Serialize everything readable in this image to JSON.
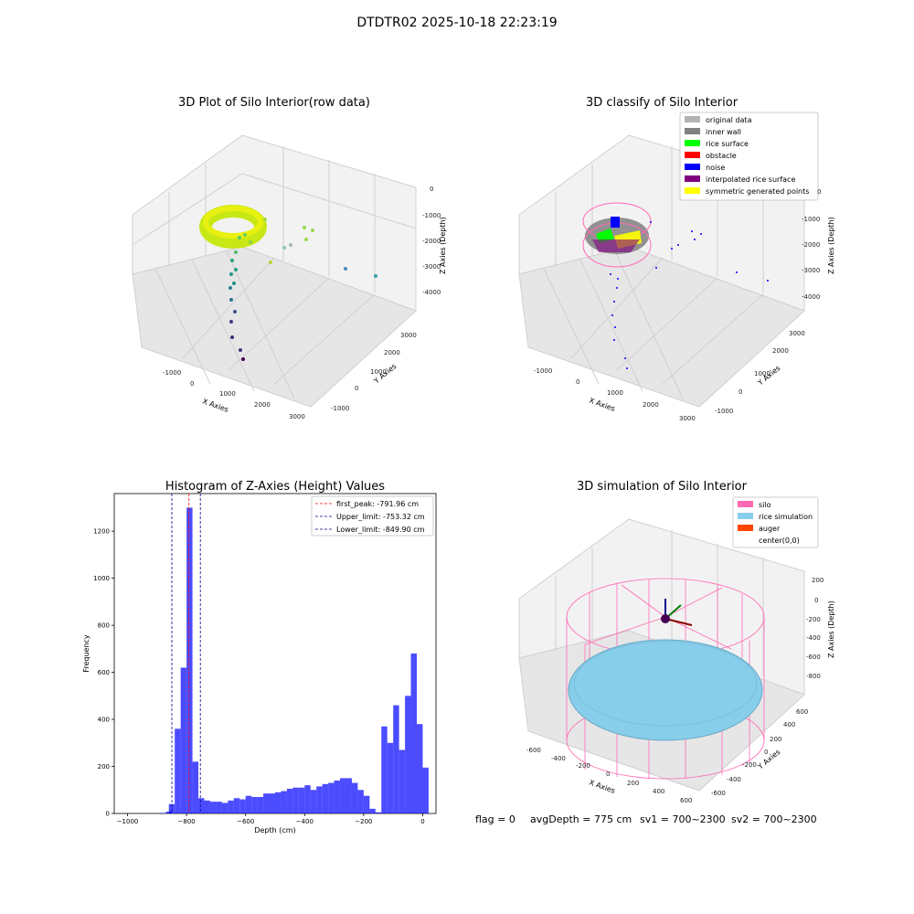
{
  "figure": {
    "suptitle": "DTDTR02 2025-10-18 22:23:19",
    "footer": {
      "flag": "flag = 0",
      "avg_depth": "avgDepth = 775 cm",
      "sv1": "sv1 = 700~2300",
      "sv2": "sv2 = 700~2300"
    }
  },
  "colors": {
    "hist_bar": "#0000ff",
    "first_peak_line": "#ff0000",
    "limit_lines": "#00008b",
    "silo_wire": "#ff69b4",
    "rice": "#87ceeb",
    "auger": "#ff4500",
    "inner_wall": "#808080",
    "rice_surface": "#00ff00",
    "obstacle": "#ff0000",
    "noise": "#0000ff",
    "interpolated": "#800080",
    "symmetric": "#ffff00",
    "original": "#b3b3b3"
  },
  "chart_data": [
    {
      "type": "scatter",
      "title": "3D Plot of Silo Interior(row data)",
      "xlabel": "X Axies",
      "ylabel": "Y Axies",
      "zlabel": "Z Axies (Depth)",
      "xticks": [
        "-1000",
        "0",
        "1000",
        "2000",
        "3000"
      ],
      "yticks": [
        "-1000",
        "0",
        "1000",
        "2000",
        "3000"
      ],
      "zticks": [
        "0",
        "-1000",
        "-2000",
        "-3000",
        "-4000"
      ]
    },
    {
      "type": "scatter",
      "title": "3D classify of Silo Interior",
      "xlabel": "X Axies",
      "ylabel": "Y Axies",
      "zlabel": "Z Axies (Depth)",
      "xticks": [
        "-1000",
        "0",
        "1000",
        "2000",
        "3000"
      ],
      "yticks": [
        "-1000",
        "0",
        "1000",
        "2000",
        "3000"
      ],
      "zticks": [
        "0",
        "-1000",
        "-2000",
        "-3000",
        "-4000"
      ],
      "legend": [
        {
          "label": "original data",
          "color": "#b3b3b3"
        },
        {
          "label": "inner wall",
          "color": "#808080"
        },
        {
          "label": "rice surface",
          "color": "#00ff00"
        },
        {
          "label": "obstacle",
          "color": "#ff0000"
        },
        {
          "label": "noise",
          "color": "#0000ff"
        },
        {
          "label": "interpolated rice surface",
          "color": "#800080"
        },
        {
          "label": "symmetric generated points",
          "color": "#ffff00"
        }
      ]
    },
    {
      "type": "bar",
      "title": "Histogram of Z-Axies (Height) Values",
      "xlabel": "Depth (cm)",
      "ylabel": "Frequency",
      "xlim": [
        -1045,
        45
      ],
      "ylim": [
        0,
        1360
      ],
      "xticks": [
        -1000,
        -800,
        -600,
        -400,
        -200,
        0
      ],
      "yticks": [
        0,
        200,
        400,
        600,
        800,
        1000,
        1200
      ],
      "bin_width": 20,
      "bins": [
        {
          "x": -880,
          "v": 2
        },
        {
          "x": -860,
          "v": 8
        },
        {
          "x": -850,
          "v": 40
        },
        {
          "x": -830,
          "v": 360
        },
        {
          "x": -810,
          "v": 620
        },
        {
          "x": -790,
          "v": 1300
        },
        {
          "x": -770,
          "v": 220
        },
        {
          "x": -750,
          "v": 65
        },
        {
          "x": -730,
          "v": 55
        },
        {
          "x": -710,
          "v": 50
        },
        {
          "x": -690,
          "v": 50
        },
        {
          "x": -670,
          "v": 45
        },
        {
          "x": -650,
          "v": 55
        },
        {
          "x": -630,
          "v": 65
        },
        {
          "x": -610,
          "v": 60
        },
        {
          "x": -590,
          "v": 75
        },
        {
          "x": -570,
          "v": 70
        },
        {
          "x": -550,
          "v": 70
        },
        {
          "x": -530,
          "v": 85
        },
        {
          "x": -510,
          "v": 85
        },
        {
          "x": -490,
          "v": 90
        },
        {
          "x": -470,
          "v": 95
        },
        {
          "x": -450,
          "v": 105
        },
        {
          "x": -430,
          "v": 110
        },
        {
          "x": -410,
          "v": 110
        },
        {
          "x": -390,
          "v": 120
        },
        {
          "x": -370,
          "v": 100
        },
        {
          "x": -350,
          "v": 115
        },
        {
          "x": -330,
          "v": 125
        },
        {
          "x": -310,
          "v": 130
        },
        {
          "x": -290,
          "v": 140
        },
        {
          "x": -270,
          "v": 150
        },
        {
          "x": -250,
          "v": 150
        },
        {
          "x": -230,
          "v": 130
        },
        {
          "x": -210,
          "v": 100
        },
        {
          "x": -190,
          "v": 75
        },
        {
          "x": -170,
          "v": 20
        },
        {
          "x": -150,
          "v": 5
        },
        {
          "x": -130,
          "v": 370
        },
        {
          "x": -110,
          "v": 300
        },
        {
          "x": -90,
          "v": 460
        },
        {
          "x": -70,
          "v": 270
        },
        {
          "x": -50,
          "v": 500
        },
        {
          "x": -30,
          "v": 680
        },
        {
          "x": -10,
          "v": 380
        },
        {
          "x": 10,
          "v": 195
        }
      ],
      "vlines": [
        {
          "label": "first_peak: -791.96 cm",
          "x": -791.96,
          "color": "#ff0000"
        },
        {
          "label": "Upper_limit: -753.32 cm",
          "x": -753.32,
          "color": "#00008b"
        },
        {
          "label": "Lower_limit: -849.90 cm",
          "x": -849.9,
          "color": "#00008b"
        }
      ]
    },
    {
      "type": "scatter",
      "title": "3D simulation of Silo Interior",
      "xlabel": "X Axies",
      "ylabel": "Y Axies",
      "zlabel": "Z Axies (Depth)",
      "xticks": [
        "-600",
        "-400",
        "-200",
        "0",
        "200",
        "400",
        "600"
      ],
      "yticks": [
        "-600",
        "-400",
        "-200",
        "0",
        "200",
        "400",
        "600"
      ],
      "zticks": [
        "200",
        "0",
        "-200",
        "-400",
        "-600",
        "-800"
      ],
      "legend": [
        {
          "label": "silo",
          "color": "#ff69b4"
        },
        {
          "label": "rice simulation",
          "color": "#87ceeb"
        },
        {
          "label": "auger",
          "color": "#ff4500"
        },
        {
          "label": "center(0,0)",
          "color": ""
        }
      ]
    }
  ]
}
